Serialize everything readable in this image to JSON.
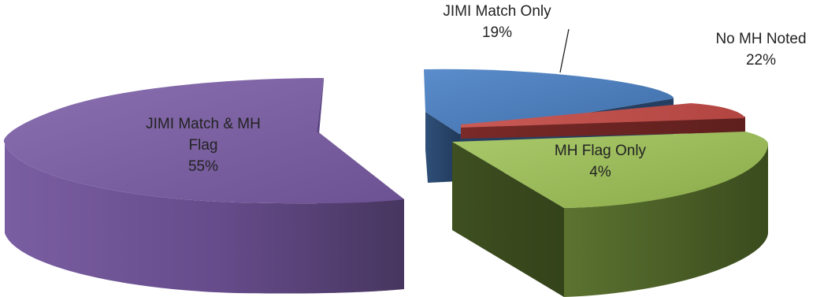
{
  "chart_data": {
    "type": "pie",
    "exploded": true,
    "three_d": true,
    "title": "",
    "slices": [
      {
        "key": "jimi_match_only",
        "label_lines": [
          "JIMI Match Only",
          "19%"
        ],
        "value": 19,
        "color": "#4F81BD"
      },
      {
        "key": "no_mh_noted",
        "label_lines": [
          "No MH Noted",
          "22%"
        ],
        "value": 22,
        "color": "#C0504D"
      },
      {
        "key": "mh_flag_only",
        "label_lines": [
          "MH Flag Only",
          "4%"
        ],
        "value": 4,
        "color": "#9BBB59"
      },
      {
        "key": "jimi_match_mh_flag",
        "label_lines": [
          "JIMI Match & MH",
          "Flag",
          "55%"
        ],
        "value": 55,
        "color": "#8064A2"
      }
    ]
  }
}
